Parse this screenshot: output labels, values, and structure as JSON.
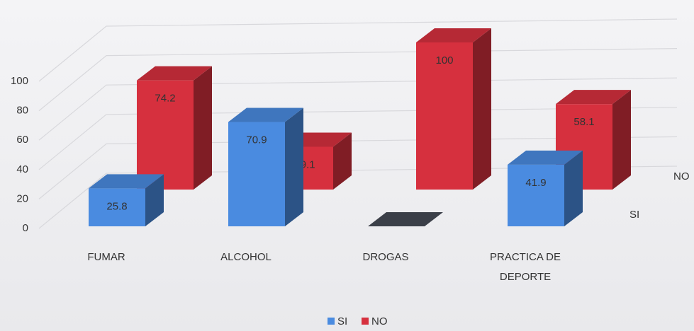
{
  "chart_data": {
    "type": "bar3d",
    "categories": [
      "FUMAR",
      "ALCOHOL",
      "DROGAS",
      "PRACTICA DE DEPORTE"
    ],
    "series": [
      {
        "name": "SI",
        "color": "#4a8be0",
        "values": [
          25.8,
          70.9,
          0,
          41.9
        ],
        "value_labels": [
          "25.8",
          "70.9",
          null,
          "41.9"
        ]
      },
      {
        "name": "NO",
        "color": "#d6303e",
        "values": [
          74.2,
          29.1,
          100,
          58.1
        ]
      }
    ],
    "ylim": [
      0,
      100
    ],
    "yticks": [
      0,
      20,
      40,
      60,
      80,
      100
    ],
    "grid": true
  }
}
